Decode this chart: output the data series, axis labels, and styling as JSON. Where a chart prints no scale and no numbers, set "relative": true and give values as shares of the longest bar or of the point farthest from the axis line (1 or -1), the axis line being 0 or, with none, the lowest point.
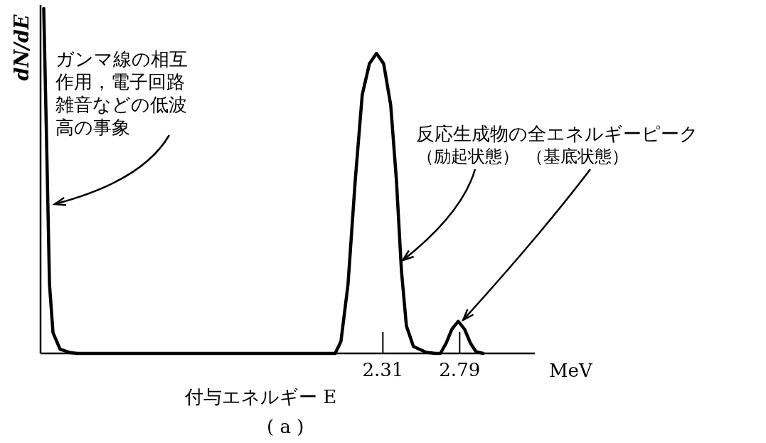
{
  "chart_data": {
    "type": "line",
    "relative": true,
    "ylabel": "dN/dE",
    "xlabel": "付与エネルギー E",
    "xlim": [
      0.17,
      3.26
    ],
    "xticks": [
      2.31,
      2.79
    ],
    "grid": false,
    "marker": "none",
    "line_style": "solid",
    "series": [
      {
        "color": "#000000",
        "x": [
          0.19,
          0.208,
          0.226,
          0.248,
          0.292,
          0.359,
          0.4,
          2.012,
          2.048,
          2.092,
          2.137,
          2.181,
          2.226,
          2.27,
          2.315,
          2.359,
          2.395,
          2.426,
          2.457,
          2.501,
          2.581,
          2.639,
          2.67,
          2.706,
          2.741,
          2.781,
          2.821,
          2.857,
          2.892,
          2.937
        ],
        "values": [
          1,
          0.61,
          0.2,
          0.06,
          0.012,
          0.002,
          0,
          0,
          0.035,
          0.2,
          0.5,
          0.75,
          0.84,
          0.87,
          0.84,
          0.72,
          0.5,
          0.24,
          0.08,
          0.02,
          0.003,
          0,
          0,
          0.03,
          0.07,
          0.093,
          0.07,
          0.03,
          0.005,
          0
        ]
      }
    ],
    "annotations": [
      "ガンマ線の相互作用，電子回路雑音などの低波高の事象",
      "反応生成物の全エネルギーピーク",
      {
        "text": "（励起状態）",
        "x": 2.435,
        "y": 0.27
      },
      {
        "text": "（基底状態）",
        "x": 2.812,
        "y": 0.097
      },
      "MeV",
      "( a )"
    ]
  }
}
